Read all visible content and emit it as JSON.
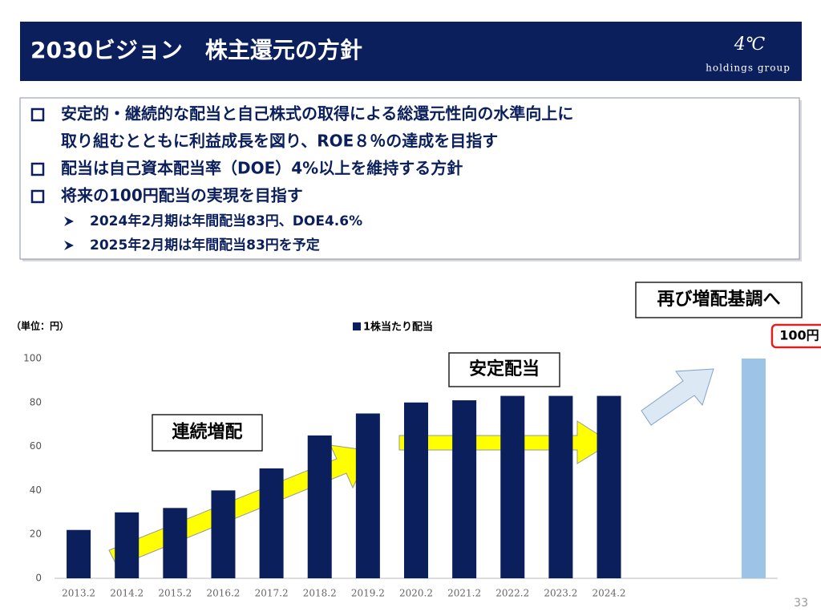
{
  "header": {
    "title": "2030ビジョン　株主還元の方針",
    "logo": "4℃",
    "logo_sub": "holdings group"
  },
  "bullets": [
    {
      "lines": [
        "安定的・継続的な配当と自己株式の取得による総還元性向の水準向上に",
        "取り組むとともに利益成長を図り、ROE８％の達成を目指す"
      ]
    },
    {
      "lines": [
        "配当は自己資本配当率（DOE）4%以上を維持する方針"
      ]
    },
    {
      "lines": [
        "将来の100円配当の実現を目指す"
      ]
    }
  ],
  "sub_bullets": [
    "2024年2月期は年間配当83円、DOE4.6%",
    "2025年2月期は年間配当83円を予定"
  ],
  "page_number": "33",
  "chart_data": {
    "type": "bar",
    "unit_label": "（単位：円）",
    "categories": [
      "2013.2",
      "2014.2",
      "2015.2",
      "2016.2",
      "2017.2",
      "2018.2",
      "2019.2",
      "2020.2",
      "2021.2",
      "2022.2",
      "2023.2",
      "2024.2",
      null,
      null,
      null
    ],
    "series": [
      {
        "name": "1株当たり配当",
        "color": "#0a1f5c",
        "values": [
          22,
          30,
          32,
          40,
          50,
          65,
          75,
          80,
          81,
          83,
          83,
          83,
          null,
          null,
          null
        ]
      },
      {
        "color": "#9dc3e6",
        "values": [
          null,
          null,
          null,
          null,
          null,
          null,
          null,
          null,
          null,
          null,
          null,
          null,
          null,
          null,
          100
        ],
        "value_labels": [
          null,
          null,
          null,
          null,
          null,
          null,
          null,
          null,
          null,
          null,
          null,
          null,
          null,
          null,
          "100円"
        ]
      }
    ],
    "ylim": [
      0,
      100
    ],
    "yticks": [
      0,
      20,
      40,
      60,
      80,
      100
    ],
    "grid": false,
    "annotations": [
      "連続増配",
      "安定配当",
      "再び増配基調へ"
    ]
  }
}
